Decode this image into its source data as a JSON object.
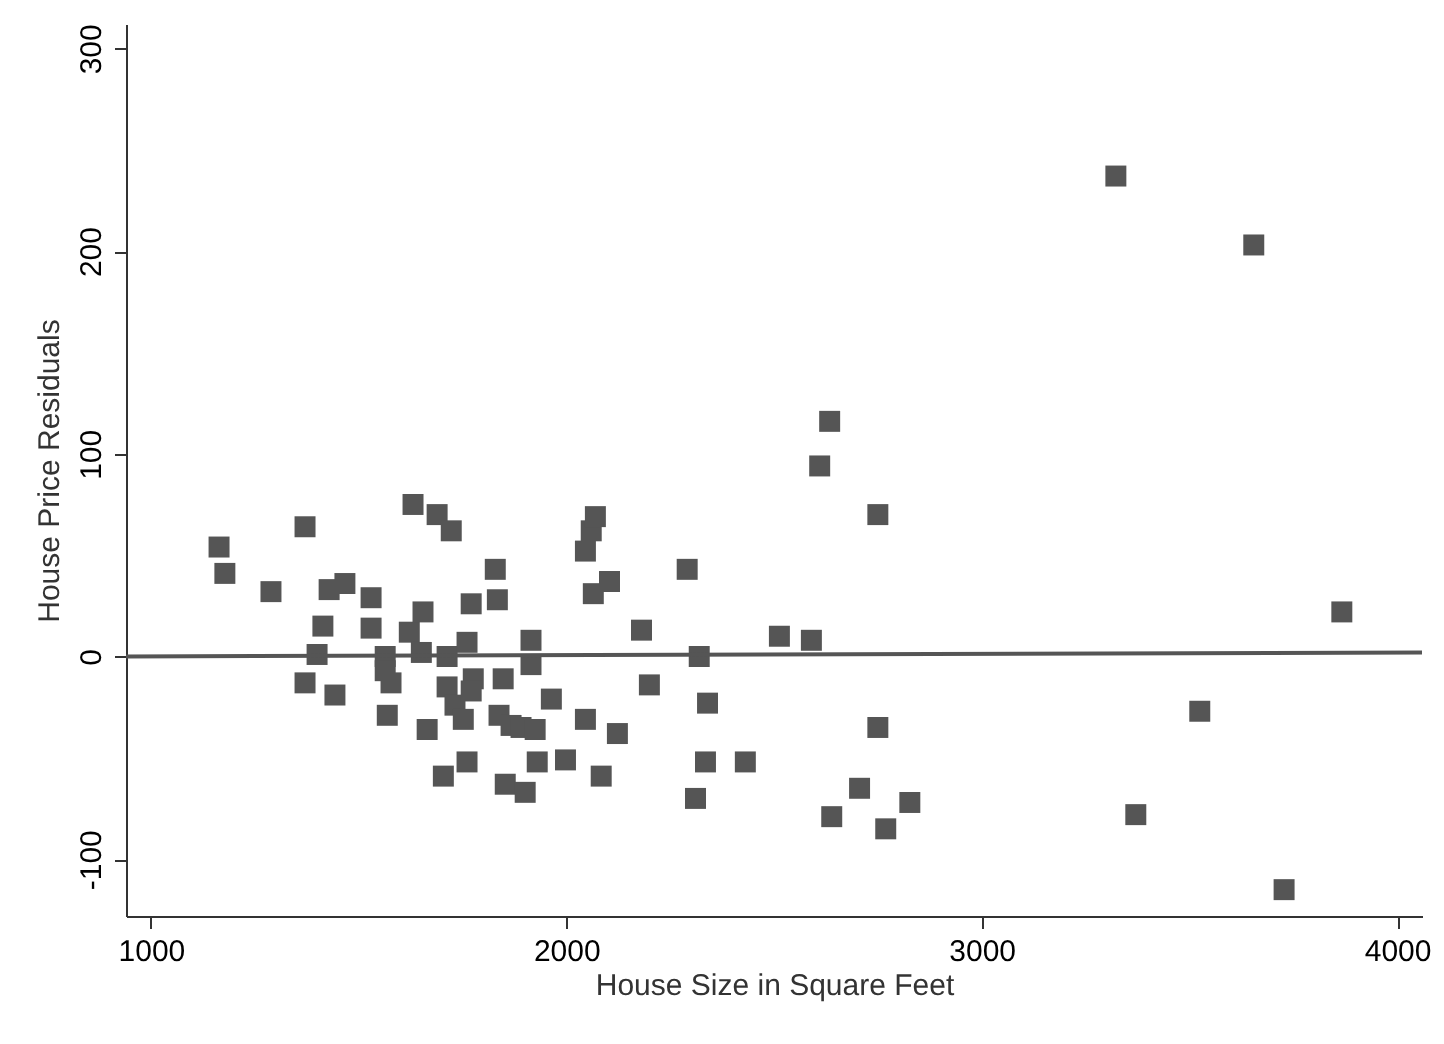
{
  "chart_data": {
    "type": "scatter",
    "xlabel": "House Size in Square Feet",
    "ylabel": "House Price Residuals",
    "xlim": [
      940,
      4060
    ],
    "ylim": [
      -128,
      312
    ],
    "xticks": [
      1000,
      2000,
      3000,
      4000
    ],
    "yticks": [
      -100,
      0,
      100,
      200,
      300
    ],
    "grid": false,
    "marker": "square",
    "series": [
      {
        "color": "#555555",
        "x": [
          1164,
          1178,
          1289,
          1371,
          1371,
          1400,
          1414,
          1429,
          1443,
          1467,
          1530,
          1530,
          1564,
          1564,
          1578,
          1569,
          1631,
          1622,
          1651,
          1655,
          1665,
          1689,
          1704,
          1713,
          1723,
          1713,
          1732,
          1752,
          1761,
          1761,
          1771,
          1776,
          1771,
          1829,
          1834,
          1838,
          1848,
          1853,
          1867,
          1891,
          1901,
          1915,
          1915,
          1925,
          1930,
          1964,
          1998,
          2046,
          2046,
          2060,
          2070,
          2065,
          2104,
          2084,
          2123,
          2181,
          2200,
          2291,
          2311,
          2320,
          2340,
          2335,
          2431,
          2513,
          2590,
          2610,
          2634,
          2639,
          2706,
          2750,
          2750,
          2769,
          2827,
          3323,
          3371,
          3525,
          3655,
          3728,
          3867
        ],
        "values": [
          54,
          41,
          32,
          64,
          -13,
          1,
          15,
          33,
          -19,
          36,
          29,
          14,
          0,
          -7,
          -13,
          -29,
          75,
          12,
          2,
          22,
          -36,
          70,
          -59,
          0,
          62,
          -15,
          -24,
          -31,
          7,
          -52,
          26,
          -11,
          -17,
          43,
          28,
          -29,
          -11,
          -63,
          -34,
          -35,
          -67,
          8,
          -4,
          -36,
          -52,
          -21,
          -51,
          -31,
          52,
          62,
          69,
          31,
          37,
          -59,
          -38,
          13,
          -14,
          43,
          -70,
          0,
          -23,
          -52,
          -52,
          10,
          8,
          94,
          116,
          -79,
          -65,
          70,
          -35,
          -85,
          -72,
          237,
          -78,
          -27,
          203,
          -115,
          22
        ]
      },
      {
        "type": "line",
        "marker": "none",
        "color": "#555555",
        "x": [
          940,
          4060
        ],
        "values": [
          0,
          2
        ]
      }
    ]
  }
}
